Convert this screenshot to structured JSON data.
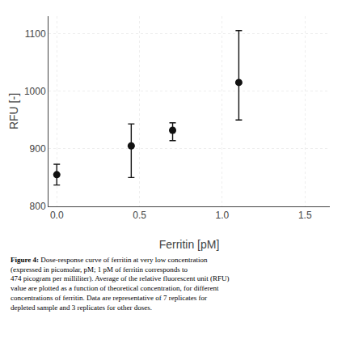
{
  "chart_data": {
    "type": "scatter",
    "x": [
      0.0,
      0.45,
      0.7,
      1.1
    ],
    "values": [
      855,
      905,
      932,
      1015
    ],
    "error_low": [
      18,
      55,
      18,
      65
    ],
    "error_high": [
      18,
      38,
      13,
      90
    ],
    "xlim": [
      -0.05,
      1.65
    ],
    "ylim": [
      800,
      1130
    ],
    "xticks": [
      {
        "value": 0.0,
        "label": "0.0"
      },
      0.5,
      {
        "value": 1.0,
        "label": "1.0"
      },
      1.5
    ],
    "yticks": [
      800,
      900,
      1000,
      1100
    ],
    "xlabel": "Ferritin [pM]",
    "ylabel": "RFU [-]",
    "color": "#111111",
    "marker": "circle",
    "grid": true,
    "caption": {
      "bold": "Figure 4:",
      "text": " Dose-response curve of ferritin at very low concentration\n(expressed in picomolar, pM; 1 pM of ferritin corresponds to\n474 picogram per milliliter). Average of the relative fluorescent unit (RFU)\nvalue are plotted as a function of theoretical concentration, for different\nconcentrations of ferritin. Data are representative of 7 replicates for\ndepleted sample and 3 replicates for other doses."
    }
  }
}
